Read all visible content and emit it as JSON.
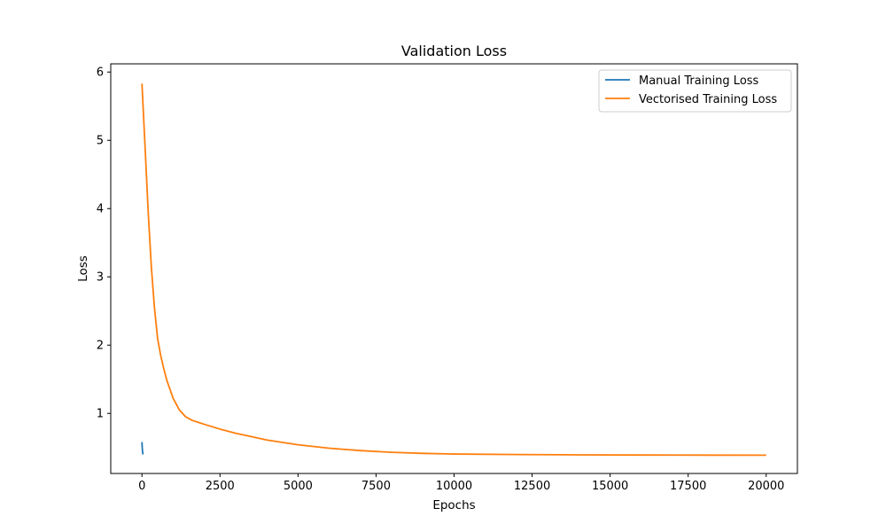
{
  "chart_data": {
    "type": "line",
    "title": "Validation Loss",
    "xlabel": "Epochs",
    "ylabel": "Loss",
    "xlim": [
      -1000,
      21000
    ],
    "ylim": [
      0.12,
      6.12
    ],
    "xticks": [
      0,
      2500,
      5000,
      7500,
      10000,
      12500,
      15000,
      17500,
      20000
    ],
    "yticks": [
      1,
      2,
      3,
      4,
      5,
      6
    ],
    "grid": false,
    "legend_position": "upper right",
    "series": [
      {
        "name": "Manual Training Loss",
        "color": "#1f77b4",
        "x": [
          0,
          5,
          10,
          15,
          20,
          25,
          30,
          40
        ],
        "y": [
          0.58,
          0.53,
          0.49,
          0.46,
          0.44,
          0.42,
          0.41,
          0.4
        ]
      },
      {
        "name": "Vectorised Training Loss",
        "color": "#ff7f0e",
        "x": [
          0,
          100,
          200,
          300,
          400,
          500,
          600,
          700,
          800,
          1000,
          1200,
          1400,
          1600,
          1800,
          2000,
          2500,
          3000,
          3500,
          4000,
          5000,
          6000,
          7000,
          8000,
          9000,
          10000,
          12000,
          14000,
          16000,
          18000,
          20000
        ],
        "y": [
          5.83,
          4.9,
          3.95,
          3.15,
          2.55,
          2.1,
          1.85,
          1.65,
          1.48,
          1.22,
          1.05,
          0.95,
          0.9,
          0.87,
          0.84,
          0.77,
          0.71,
          0.66,
          0.61,
          0.54,
          0.49,
          0.455,
          0.43,
          0.415,
          0.405,
          0.398,
          0.393,
          0.39,
          0.389,
          0.388
        ]
      }
    ]
  }
}
